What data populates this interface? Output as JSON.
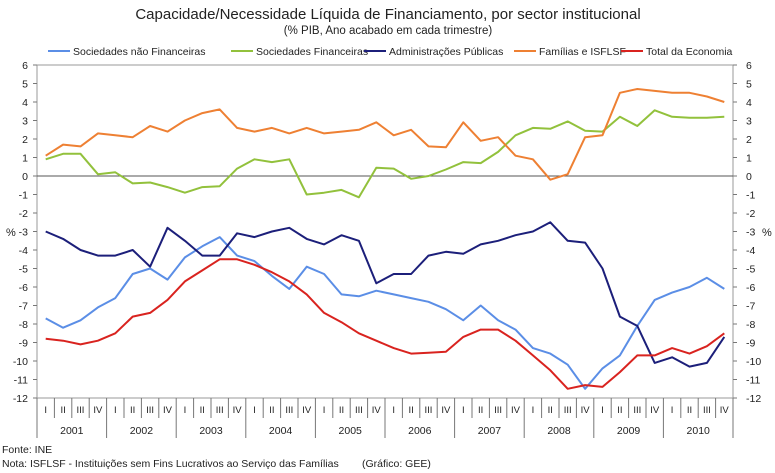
{
  "chart_data": {
    "type": "line",
    "title": "Capacidade/Necessidade Líquida de Financiamento, por sector institucional",
    "subtitle": "(% PIB, Ano acabado em cada trimestre)",
    "ylabel_left": "%",
    "ylabel_right": "%",
    "ylim": [
      -12,
      6
    ],
    "yticks": [
      6,
      5,
      4,
      3,
      2,
      1,
      0,
      -1,
      -2,
      -3,
      -4,
      -5,
      -6,
      -7,
      -8,
      -9,
      -10,
      -11,
      -12
    ],
    "quarter_labels": [
      "I",
      "II",
      "III",
      "IV",
      "I",
      "II",
      "III",
      "IV",
      "I",
      "II",
      "III",
      "IV",
      "I",
      "II",
      "III",
      "IV",
      "I",
      "II",
      "III",
      "IV",
      "I",
      "II",
      "III",
      "IV",
      "I",
      "II",
      "III",
      "IV",
      "I",
      "II",
      "III",
      "IV",
      "I",
      "II",
      "III",
      "IV",
      "I",
      "II",
      "III",
      "IV"
    ],
    "years": [
      "2001",
      "2002",
      "2003",
      "2004",
      "2005",
      "2006",
      "2007",
      "2008",
      "2009",
      "2010"
    ],
    "legend_position": "top",
    "series": [
      {
        "name": "Sociedades não Financeiras",
        "color": "#5b8ee6",
        "values": [
          -7.7,
          -8.2,
          -7.8,
          -7.1,
          -6.6,
          -5.3,
          -5.0,
          -5.6,
          -4.4,
          -3.8,
          -3.3,
          -4.3,
          -4.6,
          -5.4,
          -6.1,
          -4.9,
          -5.3,
          -6.4,
          -6.5,
          -6.2,
          -6.4,
          -6.6,
          -6.8,
          -7.2,
          -7.8,
          -7.0,
          -7.8,
          -8.3,
          -9.3,
          -9.6,
          -10.2,
          -11.5,
          -10.4,
          -9.7,
          -8.1,
          -6.7,
          -6.3,
          -6.0,
          -5.5,
          -6.1
        ]
      },
      {
        "name": "Sociedades Financeiras",
        "color": "#92c13c",
        "values": [
          0.9,
          1.2,
          1.2,
          0.1,
          0.2,
          -0.4,
          -0.35,
          -0.6,
          -0.9,
          -0.6,
          -0.55,
          0.4,
          0.9,
          0.75,
          0.9,
          -1.0,
          -0.9,
          -0.75,
          -1.15,
          0.45,
          0.4,
          -0.15,
          0.0,
          0.35,
          0.75,
          0.7,
          1.3,
          2.2,
          2.6,
          2.55,
          2.95,
          2.45,
          2.4,
          3.2,
          2.7,
          3.55,
          3.2,
          3.15,
          3.15,
          3.2
        ]
      },
      {
        "name": "Administrações Públicas",
        "color": "#1c1f7a",
        "values": [
          -3.0,
          -3.4,
          -4.0,
          -4.3,
          -4.3,
          -4.0,
          -4.9,
          -2.8,
          -3.5,
          -4.3,
          -4.3,
          -3.1,
          -3.3,
          -3.0,
          -2.8,
          -3.4,
          -3.7,
          -3.2,
          -3.5,
          -5.8,
          -5.3,
          -5.3,
          -4.3,
          -4.1,
          -4.2,
          -3.7,
          -3.5,
          -3.2,
          -3.0,
          -2.5,
          -3.5,
          -3.6,
          -5.0,
          -7.6,
          -8.1,
          -10.1,
          -9.8,
          -10.3,
          -10.1,
          -8.7
        ]
      },
      {
        "name": "Famílias e ISFLSF",
        "color": "#ee8033",
        "values": [
          1.1,
          1.7,
          1.6,
          2.3,
          2.2,
          2.1,
          2.7,
          2.4,
          3.0,
          3.4,
          3.6,
          2.6,
          2.4,
          2.6,
          2.3,
          2.6,
          2.3,
          2.4,
          2.5,
          2.9,
          2.2,
          2.5,
          1.6,
          1.55,
          2.9,
          1.9,
          2.1,
          1.1,
          0.9,
          -0.2,
          0.1,
          2.1,
          2.2,
          4.5,
          4.7,
          4.6,
          4.5,
          4.5,
          4.3,
          4.0
        ]
      },
      {
        "name": "Total da Economia",
        "color": "#d9231f",
        "values": [
          -8.8,
          -8.9,
          -9.1,
          -8.9,
          -8.5,
          -7.6,
          -7.4,
          -6.7,
          -5.7,
          -5.1,
          -4.5,
          -4.5,
          -4.8,
          -5.2,
          -5.7,
          -6.4,
          -7.4,
          -7.9,
          -8.5,
          -8.9,
          -9.3,
          -9.6,
          -9.55,
          -9.5,
          -8.7,
          -8.3,
          -8.3,
          -8.9,
          -9.7,
          -10.5,
          -11.5,
          -11.3,
          -11.4,
          -10.6,
          -9.7,
          -9.7,
          -9.3,
          -9.6,
          -9.2,
          -8.5
        ]
      }
    ]
  },
  "footer": {
    "source": "Fonte: INE",
    "note": "Nota: ISFLSF - Instituições sem Fins Lucrativos ao Serviço das Famílias",
    "credit": "(Gráfico: GEE)"
  }
}
